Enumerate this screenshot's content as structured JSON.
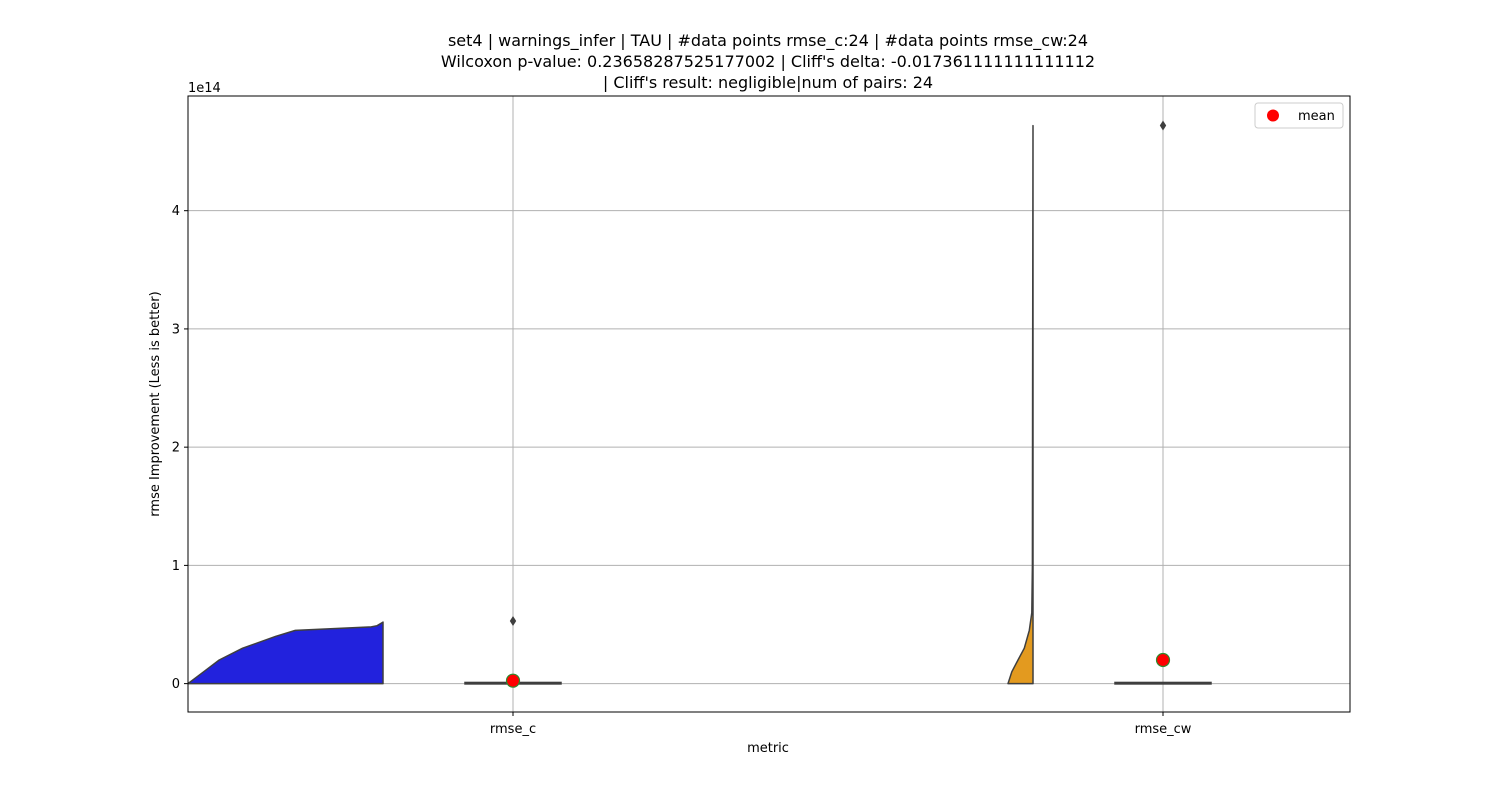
{
  "chart_data": {
    "type": "violin",
    "title_lines": [
      "set4 | warnings_infer | TAU | #data points rmse_c:24 | #data points rmse_cw:24",
      "Wilcoxon p-value: 0.23658287525177002 | Cliff's delta: -0.017361111111111112",
      "| Cliff's result: negligible|num of pairs: 24"
    ],
    "xlabel": "metric",
    "ylabel": "rmse Improvement (Less is better)",
    "y_offset_label": "1e14",
    "categories": [
      "rmse_c",
      "rmse_cw"
    ],
    "ylim": [
      -0.24,
      4.97
    ],
    "y_ticks": [
      0,
      1,
      2,
      3,
      4
    ],
    "y_tick_labels": [
      "0",
      "1",
      "2",
      "3",
      "4"
    ],
    "grid": true,
    "legend": {
      "position": "top-right",
      "entries": [
        {
          "label": "mean",
          "color": "#ff0000"
        }
      ]
    },
    "series": [
      {
        "category": "rmse_c",
        "color": "#2222dd",
        "violin_profile": [
          [
            0.0,
            1.0
          ],
          [
            0.1,
            0.92
          ],
          [
            0.2,
            0.84
          ],
          [
            0.3,
            0.72
          ],
          [
            0.4,
            0.55
          ],
          [
            0.45,
            0.45
          ],
          [
            0.48,
            0.06
          ],
          [
            0.49,
            0.03
          ],
          [
            0.52,
            0.0
          ]
        ],
        "box": {
          "q1": 0.0,
          "median": 0.0,
          "q3": 0.01
        },
        "outliers": [
          0.53
        ],
        "mean": 0.025
      },
      {
        "category": "rmse_cw",
        "color": "#e39a1f",
        "violin_profile": [
          [
            0.0,
            1.0
          ],
          [
            0.1,
            0.85
          ],
          [
            0.2,
            0.6
          ],
          [
            0.3,
            0.35
          ],
          [
            0.45,
            0.15
          ],
          [
            0.6,
            0.05
          ],
          [
            1.0,
            0.025
          ],
          [
            2.5,
            0.015
          ],
          [
            4.72,
            0.0
          ]
        ],
        "box": {
          "q1": 0.0,
          "median": 0.0,
          "q3": 0.01
        },
        "outliers": [
          4.72
        ],
        "mean": 0.2
      }
    ]
  }
}
